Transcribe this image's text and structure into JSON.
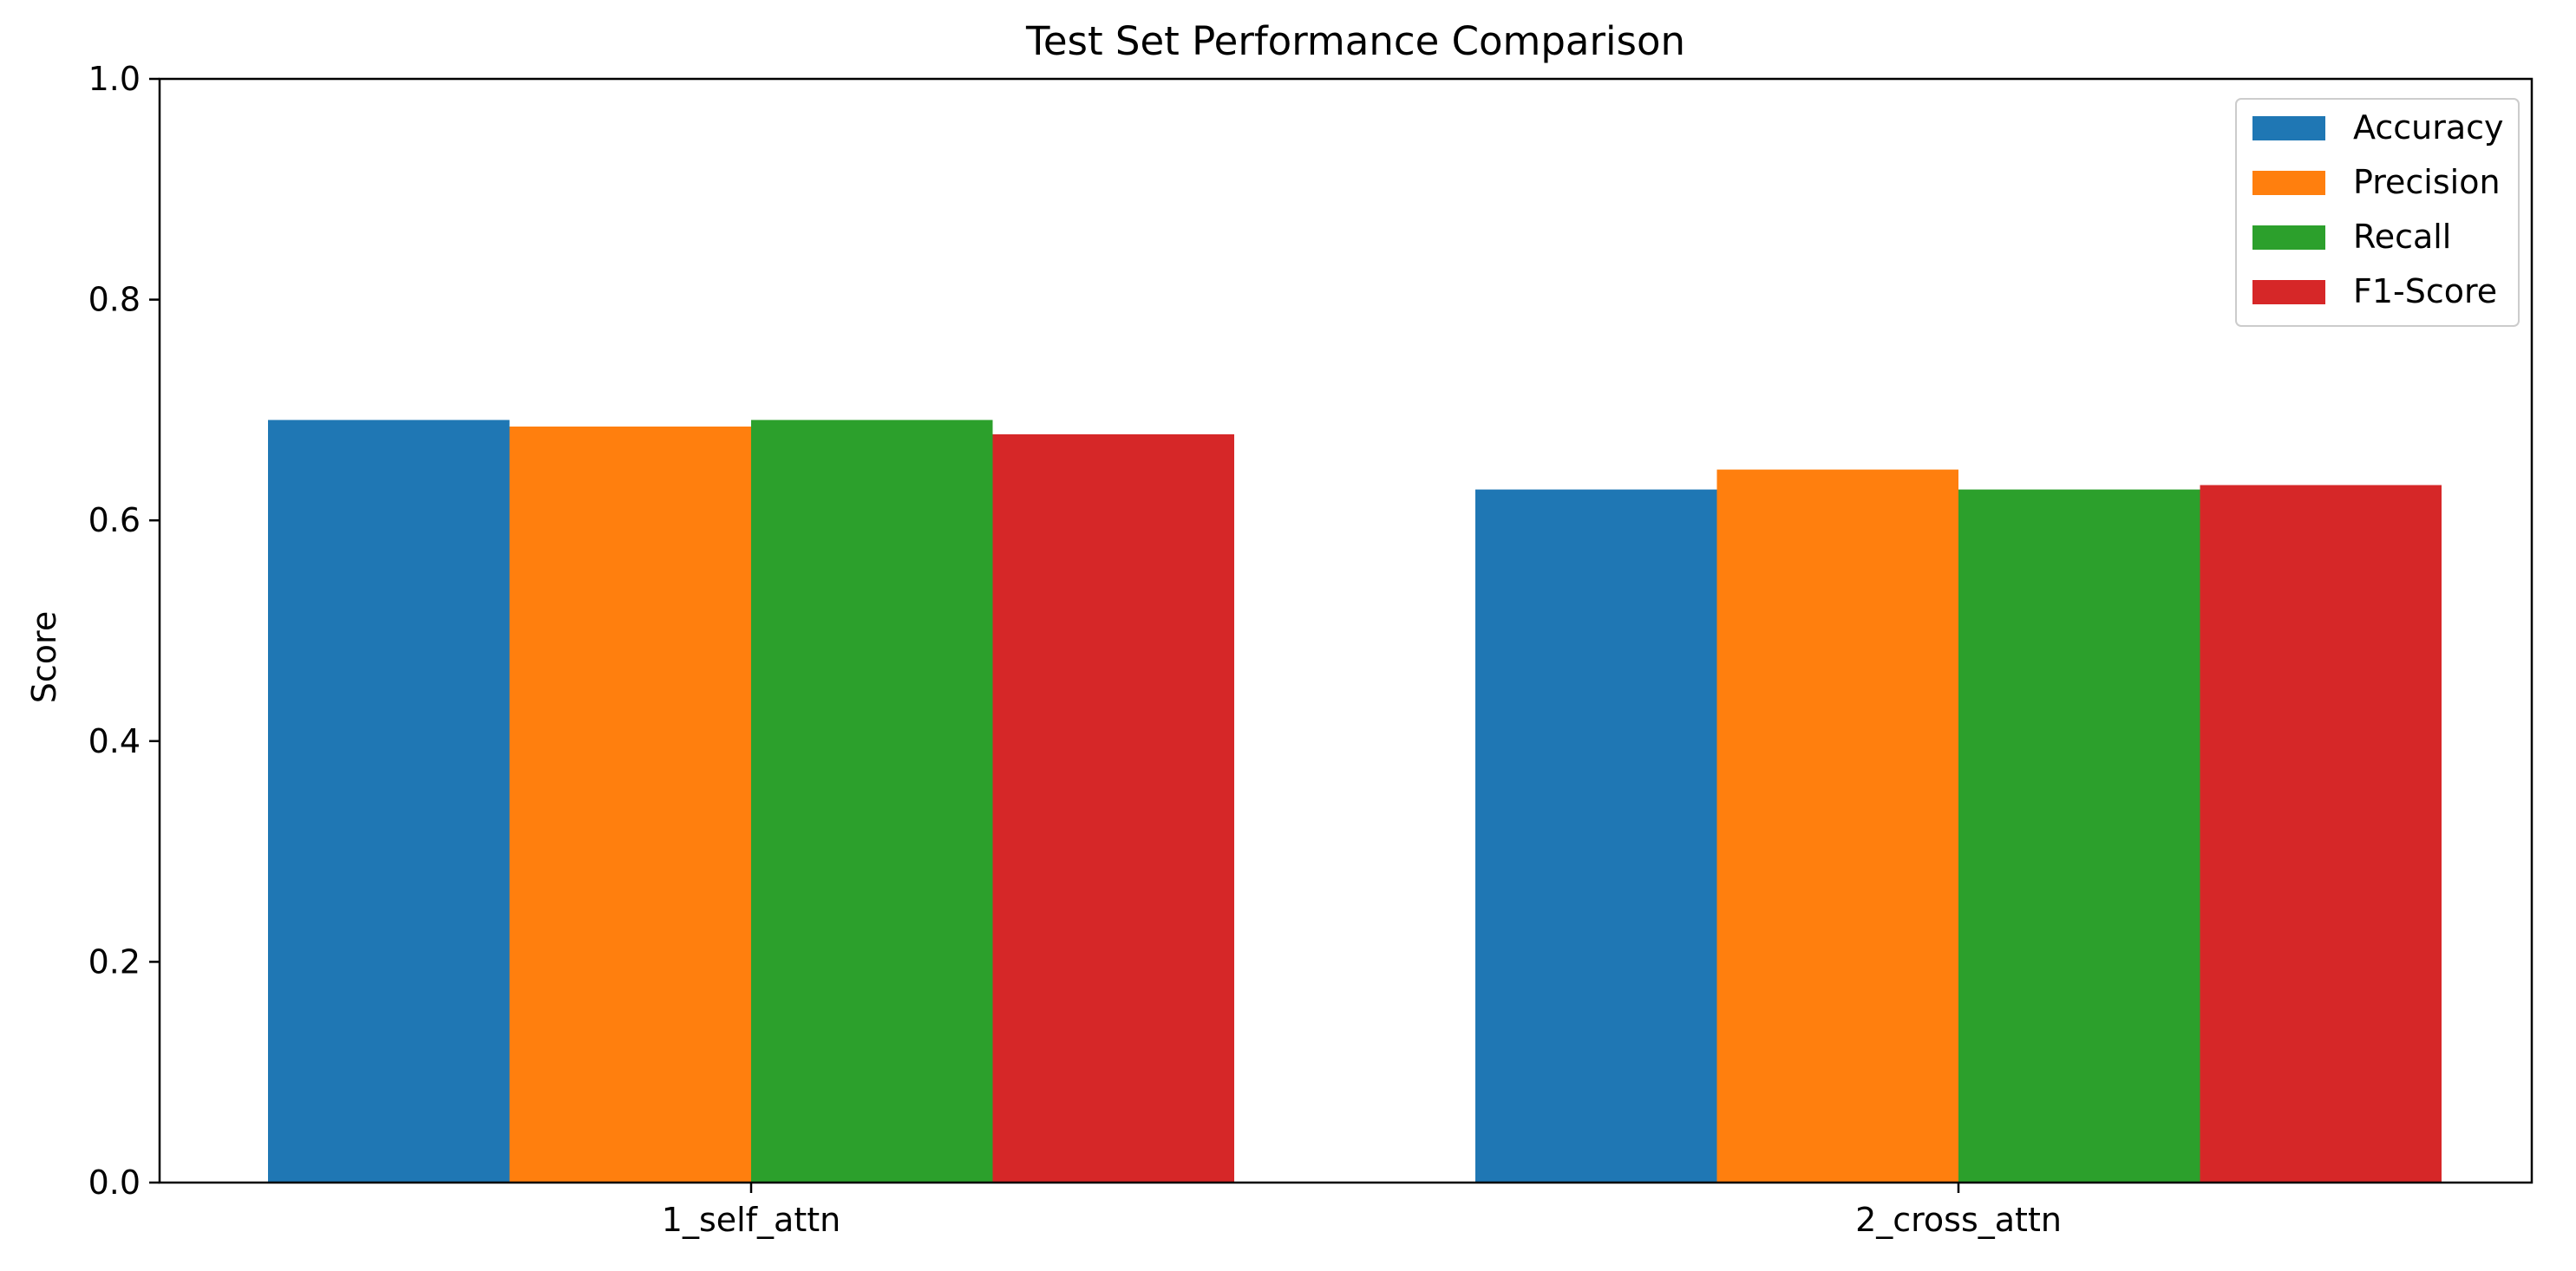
{
  "chart_data": {
    "type": "bar",
    "title": "Test Set Performance Comparison",
    "xlabel": "",
    "ylabel": "Score",
    "ylim": [
      0,
      1.0
    ],
    "yticks": [
      "0.0",
      "0.2",
      "0.4",
      "0.6",
      "0.8",
      "1.0"
    ],
    "categories": [
      "1_self_attn",
      "2_cross_attn"
    ],
    "series": [
      {
        "name": "Accuracy",
        "color": "#1f77b4",
        "values": [
          0.691,
          0.628
        ]
      },
      {
        "name": "Precision",
        "color": "#ff7f0e",
        "values": [
          0.685,
          0.646
        ]
      },
      {
        "name": "Recall",
        "color": "#2ca02c",
        "values": [
          0.691,
          0.628
        ]
      },
      {
        "name": "F1-Score",
        "color": "#d62728",
        "values": [
          0.678,
          0.632
        ]
      }
    ],
    "legend_position": "top-right",
    "grid": false
  }
}
